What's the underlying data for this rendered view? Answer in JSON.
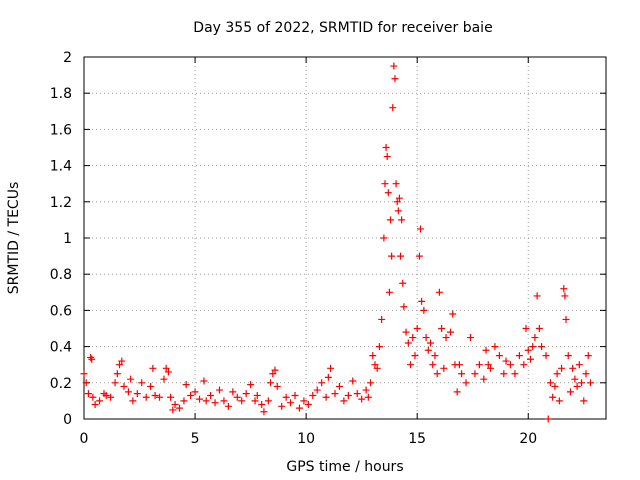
{
  "chart_data": {
    "type": "scatter",
    "title": "Day 355 of 2022, SRMTID for receiver baie",
    "xlabel": "GPS time / hours",
    "ylabel": "SRMTID / TECUs",
    "xlim": [
      0,
      23.5
    ],
    "ylim": [
      0,
      2
    ],
    "xticks": [
      0,
      5,
      10,
      15,
      20
    ],
    "xtick_labels": [
      "0",
      "5",
      "10",
      "15",
      "20"
    ],
    "yticks": [
      0,
      0.2,
      0.4,
      0.6,
      0.8,
      1.0,
      1.2,
      1.4,
      1.6,
      1.8,
      2.0
    ],
    "ytick_labels": [
      "0",
      "0.2",
      "0.4",
      "0.6",
      "0.8",
      "1",
      "1.2",
      "1.4",
      "1.6",
      "1.8",
      "2"
    ],
    "grid": true,
    "marker": "+",
    "marker_color": "#ff0000",
    "series": [
      {
        "name": "SRMTID",
        "points": [
          [
            0.0,
            0.25
          ],
          [
            0.1,
            0.2
          ],
          [
            0.2,
            0.14
          ],
          [
            0.3,
            0.34
          ],
          [
            0.35,
            0.33
          ],
          [
            0.4,
            0.12
          ],
          [
            0.5,
            0.08
          ],
          [
            0.7,
            0.1
          ],
          [
            0.9,
            0.14
          ],
          [
            1.0,
            0.13
          ],
          [
            1.2,
            0.12
          ],
          [
            1.4,
            0.2
          ],
          [
            1.5,
            0.25
          ],
          [
            1.6,
            0.3
          ],
          [
            1.7,
            0.32
          ],
          [
            1.8,
            0.18
          ],
          [
            2.0,
            0.15
          ],
          [
            2.1,
            0.22
          ],
          [
            2.2,
            0.1
          ],
          [
            2.4,
            0.14
          ],
          [
            2.6,
            0.2
          ],
          [
            2.8,
            0.12
          ],
          [
            3.0,
            0.18
          ],
          [
            3.1,
            0.28
          ],
          [
            3.2,
            0.13
          ],
          [
            3.4,
            0.12
          ],
          [
            3.6,
            0.22
          ],
          [
            3.7,
            0.28
          ],
          [
            3.8,
            0.26
          ],
          [
            3.9,
            0.12
          ],
          [
            4.0,
            0.05
          ],
          [
            4.1,
            0.08
          ],
          [
            4.3,
            0.06
          ],
          [
            4.5,
            0.1
          ],
          [
            4.6,
            0.19
          ],
          [
            4.8,
            0.13
          ],
          [
            5.0,
            0.15
          ],
          [
            5.2,
            0.11
          ],
          [
            5.4,
            0.21
          ],
          [
            5.5,
            0.1
          ],
          [
            5.7,
            0.13
          ],
          [
            5.9,
            0.09
          ],
          [
            6.1,
            0.16
          ],
          [
            6.3,
            0.1
          ],
          [
            6.5,
            0.07
          ],
          [
            6.7,
            0.15
          ],
          [
            6.9,
            0.12
          ],
          [
            7.1,
            0.1
          ],
          [
            7.3,
            0.14
          ],
          [
            7.5,
            0.19
          ],
          [
            7.7,
            0.1
          ],
          [
            7.8,
            0.13
          ],
          [
            8.0,
            0.08
          ],
          [
            8.1,
            0.04
          ],
          [
            8.3,
            0.1
          ],
          [
            8.4,
            0.2
          ],
          [
            8.5,
            0.25
          ],
          [
            8.6,
            0.27
          ],
          [
            8.7,
            0.18
          ],
          [
            8.9,
            0.07
          ],
          [
            9.1,
            0.12
          ],
          [
            9.3,
            0.09
          ],
          [
            9.5,
            0.13
          ],
          [
            9.7,
            0.06
          ],
          [
            9.9,
            0.1
          ],
          [
            10.1,
            0.08
          ],
          [
            10.3,
            0.13
          ],
          [
            10.5,
            0.16
          ],
          [
            10.7,
            0.2
          ],
          [
            10.9,
            0.12
          ],
          [
            11.0,
            0.23
          ],
          [
            11.1,
            0.28
          ],
          [
            11.3,
            0.14
          ],
          [
            11.5,
            0.18
          ],
          [
            11.7,
            0.1
          ],
          [
            11.9,
            0.13
          ],
          [
            12.1,
            0.21
          ],
          [
            12.3,
            0.14
          ],
          [
            12.5,
            0.11
          ],
          [
            12.7,
            0.16
          ],
          [
            12.8,
            0.12
          ],
          [
            12.9,
            0.2
          ],
          [
            13.0,
            0.35
          ],
          [
            13.1,
            0.3
          ],
          [
            13.2,
            0.28
          ],
          [
            13.3,
            0.4
          ],
          [
            13.4,
            0.55
          ],
          [
            13.5,
            1.0
          ],
          [
            13.55,
            1.3
          ],
          [
            13.6,
            1.5
          ],
          [
            13.65,
            1.45
          ],
          [
            13.7,
            1.25
          ],
          [
            13.75,
            0.7
          ],
          [
            13.8,
            1.1
          ],
          [
            13.85,
            0.9
          ],
          [
            13.9,
            1.72
          ],
          [
            13.95,
            1.95
          ],
          [
            14.0,
            1.88
          ],
          [
            14.05,
            1.3
          ],
          [
            14.1,
            1.2
          ],
          [
            14.15,
            1.15
          ],
          [
            14.2,
            1.22
          ],
          [
            14.25,
            0.9
          ],
          [
            14.3,
            1.1
          ],
          [
            14.35,
            0.75
          ],
          [
            14.4,
            0.62
          ],
          [
            14.5,
            0.48
          ],
          [
            14.6,
            0.42
          ],
          [
            14.7,
            0.3
          ],
          [
            14.8,
            0.45
          ],
          [
            14.9,
            0.35
          ],
          [
            15.0,
            0.5
          ],
          [
            15.1,
            0.9
          ],
          [
            15.15,
            1.05
          ],
          [
            15.2,
            0.65
          ],
          [
            15.3,
            0.6
          ],
          [
            15.4,
            0.45
          ],
          [
            15.5,
            0.38
          ],
          [
            15.6,
            0.42
          ],
          [
            15.7,
            0.3
          ],
          [
            15.8,
            0.35
          ],
          [
            15.9,
            0.25
          ],
          [
            16.0,
            0.7
          ],
          [
            16.1,
            0.5
          ],
          [
            16.2,
            0.28
          ],
          [
            16.3,
            0.45
          ],
          [
            16.5,
            0.48
          ],
          [
            16.6,
            0.58
          ],
          [
            16.7,
            0.3
          ],
          [
            16.8,
            0.15
          ],
          [
            16.9,
            0.3
          ],
          [
            17.0,
            0.25
          ],
          [
            17.2,
            0.2
          ],
          [
            17.4,
            0.45
          ],
          [
            17.6,
            0.25
          ],
          [
            17.8,
            0.3
          ],
          [
            18.0,
            0.22
          ],
          [
            18.1,
            0.38
          ],
          [
            18.2,
            0.3
          ],
          [
            18.3,
            0.28
          ],
          [
            18.5,
            0.4
          ],
          [
            18.7,
            0.35
          ],
          [
            18.9,
            0.25
          ],
          [
            19.0,
            0.32
          ],
          [
            19.2,
            0.3
          ],
          [
            19.4,
            0.25
          ],
          [
            19.6,
            0.35
          ],
          [
            19.8,
            0.3
          ],
          [
            19.9,
            0.5
          ],
          [
            20.0,
            0.38
          ],
          [
            20.1,
            0.33
          ],
          [
            20.2,
            0.4
          ],
          [
            20.3,
            0.45
          ],
          [
            20.4,
            0.68
          ],
          [
            20.5,
            0.5
          ],
          [
            20.6,
            0.4
          ],
          [
            20.8,
            0.35
          ],
          [
            20.9,
            0.0
          ],
          [
            21.0,
            0.2
          ],
          [
            21.1,
            0.12
          ],
          [
            21.2,
            0.18
          ],
          [
            21.3,
            0.25
          ],
          [
            21.4,
            0.1
          ],
          [
            21.5,
            0.28
          ],
          [
            21.6,
            0.72
          ],
          [
            21.65,
            0.68
          ],
          [
            21.7,
            0.55
          ],
          [
            21.8,
            0.35
          ],
          [
            21.9,
            0.15
          ],
          [
            22.0,
            0.28
          ],
          [
            22.1,
            0.22
          ],
          [
            22.2,
            0.18
          ],
          [
            22.3,
            0.3
          ],
          [
            22.4,
            0.2
          ],
          [
            22.5,
            0.1
          ],
          [
            22.6,
            0.25
          ],
          [
            22.7,
            0.35
          ],
          [
            22.8,
            0.2
          ]
        ]
      }
    ]
  }
}
